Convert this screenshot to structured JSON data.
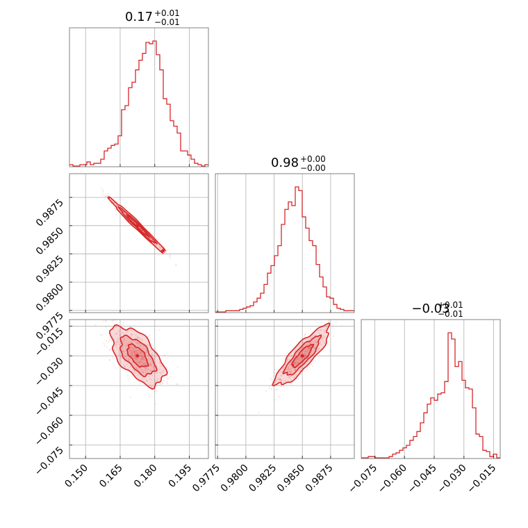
{
  "colors": {
    "accent": "#d62728",
    "grid": "#b0b0b0",
    "frame": "#808080"
  },
  "chart_data": {
    "type": "corner",
    "parameters": [
      {
        "title_value": "0.17",
        "title_plus": "+0.01",
        "title_minus": "−0.01",
        "range": [
          0.143,
          0.2033
        ],
        "ticks": [
          0.15,
          0.165,
          0.18,
          0.195
        ],
        "tick_labels": [
          "0.150",
          "0.165",
          "0.180",
          "0.195"
        ]
      },
      {
        "title_value": "0.98",
        "title_plus": "+0.00",
        "title_minus": "−0.00",
        "range": [
          0.9773,
          0.9896
        ],
        "ticks": [
          0.9775,
          0.98,
          0.9825,
          0.985,
          0.9875
        ],
        "tick_labels": [
          "0.9775",
          "0.9800",
          "0.9825",
          "0.9850",
          "0.9875"
        ]
      },
      {
        "title_value": "−0.03",
        "title_plus": "+0.01",
        "title_minus": "−0.01",
        "range": [
          -0.0818,
          -0.0117
        ],
        "ticks": [
          -0.075,
          -0.06,
          -0.045,
          -0.03,
          -0.015
        ],
        "tick_labels": [
          "−0.075",
          "−0.060",
          "−0.045",
          "−0.030",
          "−0.015"
        ]
      }
    ],
    "histograms": [
      {
        "values": [
          1,
          0,
          0,
          1,
          1,
          3,
          1,
          2,
          2,
          5,
          11,
          13,
          15,
          16,
          22,
          41,
          44,
          57,
          61,
          70,
          77,
          82,
          90,
          89,
          91,
          81,
          70,
          49,
          45,
          33,
          29,
          24,
          11,
          11,
          8,
          5,
          2,
          1,
          0,
          1
        ]
      },
      {
        "values": [
          0,
          0,
          0,
          1,
          1,
          1,
          1,
          2,
          3,
          4,
          5,
          8,
          11,
          15,
          22,
          31,
          37,
          45,
          53,
          70,
          82,
          88,
          85,
          100,
          97,
          76,
          67,
          57,
          53,
          38,
          28,
          20,
          12,
          11,
          6,
          3,
          2,
          1,
          1,
          1
        ]
      },
      {
        "values": [
          0,
          0,
          1,
          1,
          0,
          0,
          0,
          0,
          1,
          3,
          4,
          6,
          8,
          10,
          14,
          17,
          21,
          28,
          36,
          43,
          48,
          46,
          51,
          52,
          61,
          100,
          95,
          73,
          77,
          62,
          56,
          55,
          40,
          19,
          17,
          6,
          5,
          1,
          3,
          0
        ]
      }
    ],
    "pairs": [
      {
        "x_param": 0,
        "y_param": 1,
        "mean": [
          0.1725,
          0.985
        ],
        "sd": [
          0.006,
          0.0012
        ],
        "rho": -0.985,
        "level_radii": [
          0.75,
          1.3,
          2.0
        ]
      },
      {
        "x_param": 0,
        "y_param": 2,
        "mean": [
          0.1725,
          -0.03
        ],
        "sd": [
          0.0058,
          0.0075
        ],
        "rho": -0.6,
        "level_radii": [
          0.75,
          1.3,
          2.0
        ]
      },
      {
        "x_param": 1,
        "y_param": 2,
        "mean": [
          0.985,
          -0.03
        ],
        "sd": [
          0.0012,
          0.0075
        ],
        "rho": 0.86,
        "level_radii": [
          0.75,
          1.3,
          2.0
        ]
      }
    ]
  }
}
